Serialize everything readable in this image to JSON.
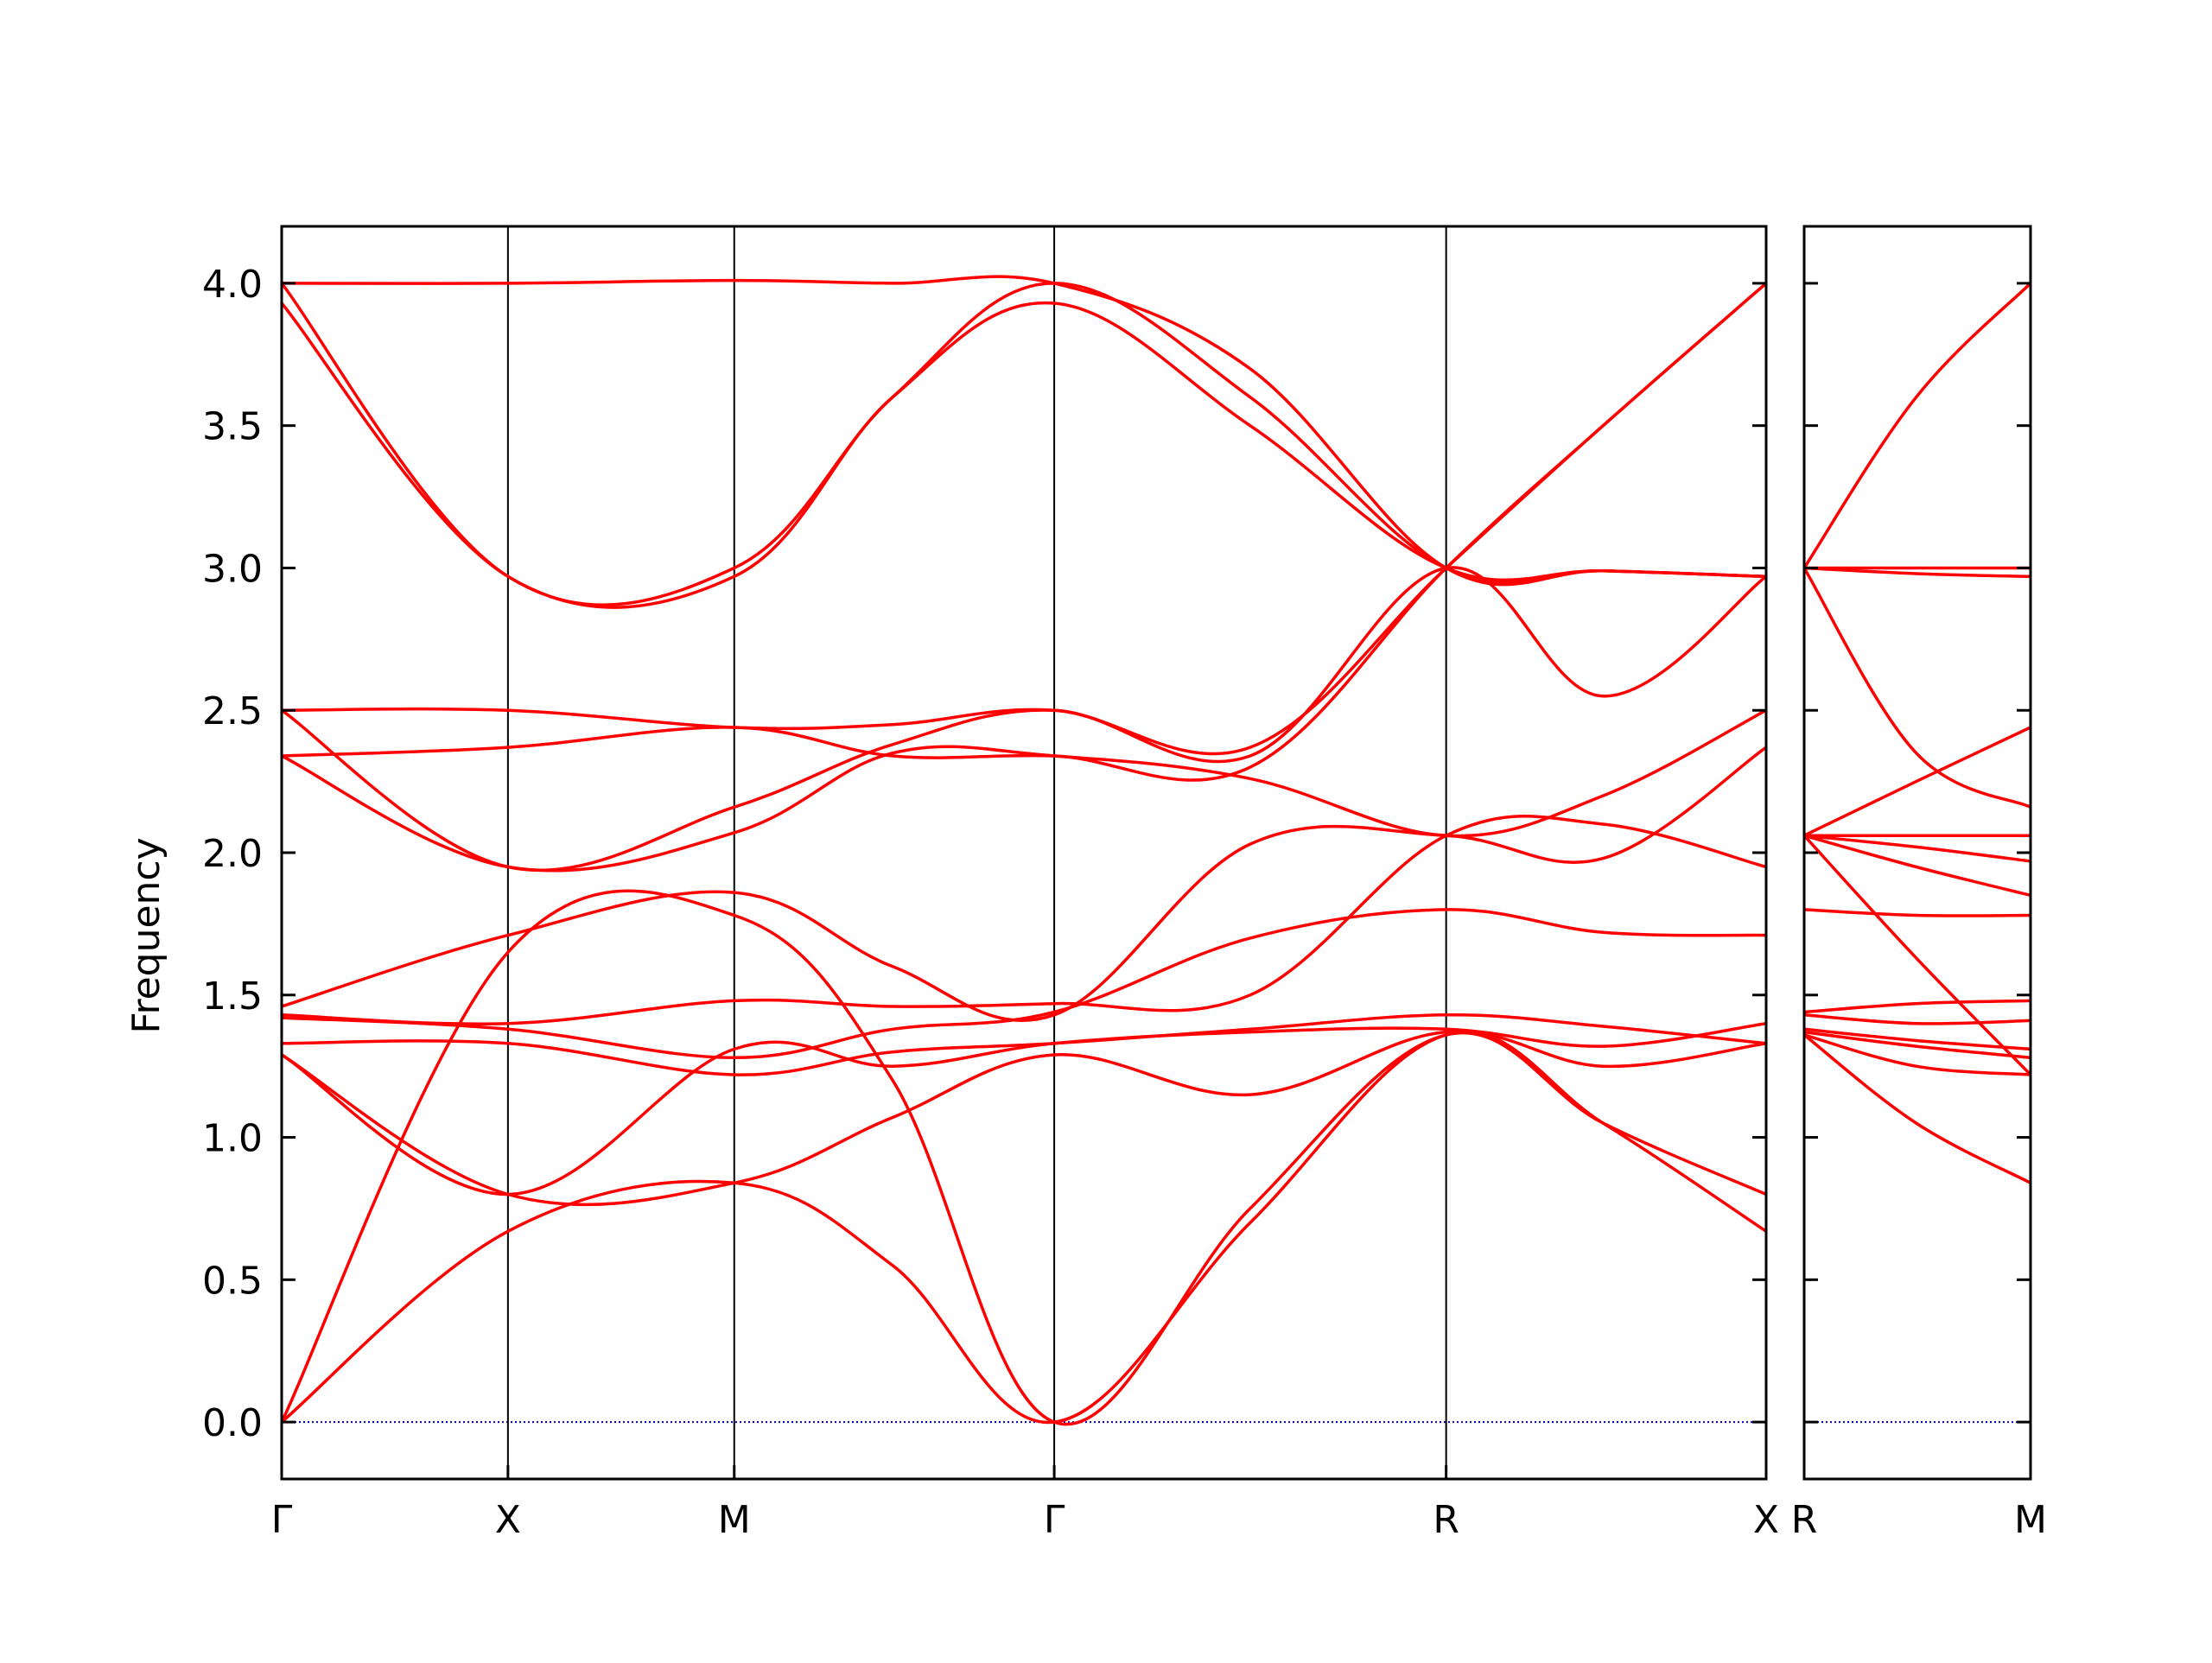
{
  "chart_data": {
    "type": "line",
    "ylabel": "Frequency",
    "ylim": [
      -0.2,
      4.2
    ],
    "yticks": [
      {
        "value": 0.0,
        "label": "0.0"
      },
      {
        "value": 0.5,
        "label": "0.5"
      },
      {
        "value": 1.0,
        "label": "1.0"
      },
      {
        "value": 1.5,
        "label": "1.5"
      },
      {
        "value": 2.0,
        "label": "2.0"
      },
      {
        "value": 2.5,
        "label": "2.5"
      },
      {
        "value": 3.0,
        "label": "3.0"
      },
      {
        "value": 3.5,
        "label": "3.5"
      },
      {
        "value": 4.0,
        "label": "4.0"
      }
    ],
    "line_color": "#ff0000",
    "zero_line_color": "#0000cc",
    "panels": [
      {
        "high_symmetry_points": [
          {
            "label": "Γ",
            "x": 0.0
          },
          {
            "label": "X",
            "x": 0.5
          },
          {
            "label": "M",
            "x": 1.0
          },
          {
            "label": "Γ",
            "x": 1.7071
          },
          {
            "label": "R",
            "x": 2.5731
          },
          {
            "label": "X",
            "x": 3.2802
          }
        ],
        "xlim": [
          0.0,
          3.2802
        ],
        "bands": [
          {
            "x": [
              0,
              0.5,
              1.0,
              1.35,
              1.7071,
              2.14,
              2.5731,
              2.92,
              3.2802
            ],
            "y": [
              0.0,
              0.67,
              0.84,
              0.55,
              0.0,
              0.7,
              1.36,
              1.05,
              0.67
            ]
          },
          {
            "x": [
              0,
              0.5,
              1.0,
              1.35,
              1.7071,
              2.14,
              2.5731,
              2.92,
              3.2802
            ],
            "y": [
              0.0,
              1.65,
              1.78,
              1.2,
              0.0,
              0.75,
              1.36,
              1.05,
              0.8
            ]
          },
          {
            "x": [
              0,
              0.5,
              1.0,
              1.35,
              1.7071,
              2.14,
              2.5731,
              2.92,
              3.2802
            ],
            "y": [
              1.29,
              0.8,
              0.84,
              1.07,
              1.29,
              1.15,
              1.37,
              1.25,
              1.33
            ]
          },
          {
            "x": [
              0,
              0.5,
              1.0,
              1.35,
              1.7071,
              2.14,
              2.5731,
              2.92,
              3.2802
            ],
            "y": [
              1.29,
              0.8,
              1.31,
              1.25,
              1.33,
              1.37,
              1.38,
              1.32,
              1.4
            ]
          },
          {
            "x": [
              0,
              0.5,
              1.0,
              1.35,
              1.7071,
              2.14,
              2.5731,
              2.92,
              3.2802
            ],
            "y": [
              1.33,
              1.33,
              1.22,
              1.3,
              1.33,
              1.38,
              1.43,
              1.39,
              1.33
            ]
          },
          {
            "x": [
              0,
              0.5,
              1.0,
              1.35,
              1.7071,
              2.14,
              2.5731,
              2.92,
              3.2802
            ],
            "y": [
              1.42,
              1.38,
              1.28,
              1.38,
              1.44,
              1.7,
              1.8,
              1.72,
              1.71
            ]
          },
          {
            "x": [
              0,
              0.5,
              1.0,
              1.35,
              1.7071,
              2.14,
              2.5731,
              2.92,
              3.2802
            ],
            "y": [
              1.43,
              1.4,
              1.48,
              1.46,
              1.47,
              1.5,
              2.06,
              2.1,
              1.95
            ]
          },
          {
            "x": [
              0,
              0.5,
              1.0,
              1.35,
              1.7071,
              2.14,
              2.5731,
              2.92,
              3.2802
            ],
            "y": [
              1.46,
              1.71,
              1.86,
              1.6,
              1.43,
              2.03,
              2.06,
              1.98,
              2.37
            ]
          },
          {
            "x": [
              0,
              0.5,
              1.0,
              1.35,
              1.7071,
              2.14,
              2.5731,
              2.92,
              3.2802
            ],
            "y": [
              2.34,
              1.95,
              2.07,
              2.35,
              2.34,
              2.26,
              2.06,
              2.2,
              2.5
            ]
          },
          {
            "x": [
              0,
              0.5,
              1.0,
              1.35,
              1.7071,
              2.14,
              2.5731,
              2.92,
              3.2802
            ],
            "y": [
              2.5,
              1.95,
              2.16,
              2.38,
              2.5,
              2.34,
              3.0,
              2.55,
              2.97
            ]
          },
          {
            "x": [
              0,
              0.5,
              1.0,
              1.35,
              1.7071,
              2.14,
              2.5731,
              2.92,
              3.2802
            ],
            "y": [
              2.34,
              2.37,
              2.44,
              2.34,
              2.34,
              2.3,
              3.0,
              3.5,
              4.0
            ]
          },
          {
            "x": [
              0,
              0.5,
              1.0,
              1.35,
              1.7071,
              2.14,
              2.5731,
              2.92,
              3.2802
            ],
            "y": [
              2.5,
              2.5,
              2.44,
              2.45,
              2.5,
              2.37,
              3.0,
              3.5,
              4.0
            ]
          },
          {
            "x": [
              0,
              0.5,
              1.0,
              1.35,
              1.7071,
              2.14,
              2.5731,
              2.92,
              3.2802
            ],
            "y": [
              3.93,
              2.97,
              2.97,
              3.6,
              3.93,
              3.5,
              3.0,
              2.99,
              2.97
            ]
          },
          {
            "x": [
              0,
              0.5,
              1.0,
              1.35,
              1.7071,
              2.14,
              2.5731,
              2.92,
              3.2802
            ],
            "y": [
              4.0,
              2.97,
              3.0,
              3.6,
              4.0,
              3.6,
              3.0,
              2.99,
              2.97
            ]
          },
          {
            "x": [
              0,
              0.5,
              1.0,
              1.35,
              1.7071,
              2.14,
              2.5731,
              2.92,
              3.2802
            ],
            "y": [
              4.0,
              4.0,
              4.01,
              4.0,
              4.0,
              3.7,
              3.0,
              2.99,
              2.97
            ]
          }
        ]
      },
      {
        "high_symmetry_points": [
          {
            "label": "R",
            "x": 0.0
          },
          {
            "label": "M",
            "x": 0.7071
          }
        ],
        "xlim": [
          0.0,
          0.7071
        ],
        "bands": [
          {
            "x": [
              0,
              0.35,
              0.7071
            ],
            "y": [
              1.36,
              1.05,
              0.84
            ]
          },
          {
            "x": [
              0,
              0.35,
              0.7071
            ],
            "y": [
              1.36,
              1.25,
              1.22
            ]
          },
          {
            "x": [
              0,
              0.35,
              0.7071
            ],
            "y": [
              1.37,
              1.32,
              1.28
            ]
          },
          {
            "x": [
              0,
              0.35,
              0.7071
            ],
            "y": [
              1.38,
              1.34,
              1.31
            ]
          },
          {
            "x": [
              0,
              0.35,
              0.7071
            ],
            "y": [
              1.43,
              1.4,
              1.41
            ]
          },
          {
            "x": [
              0,
              0.35,
              0.7071
            ],
            "y": [
              1.44,
              1.47,
              1.48
            ]
          },
          {
            "x": [
              0,
              0.35,
              0.7071
            ],
            "y": [
              1.8,
              1.78,
              1.78
            ]
          },
          {
            "x": [
              0,
              0.35,
              0.7071
            ],
            "y": [
              2.06,
              1.63,
              1.22
            ]
          },
          {
            "x": [
              0,
              0.35,
              0.7071
            ],
            "y": [
              2.06,
              1.95,
              1.85
            ]
          },
          {
            "x": [
              0,
              0.35,
              0.7071
            ],
            "y": [
              2.06,
              2.02,
              1.97
            ]
          },
          {
            "x": [
              0,
              0.35,
              0.7071
            ],
            "y": [
              2.06,
              2.06,
              2.06
            ]
          },
          {
            "x": [
              0,
              0.35,
              0.7071
            ],
            "y": [
              2.06,
              2.25,
              2.44
            ]
          },
          {
            "x": [
              0,
              0.35,
              0.7071
            ],
            "y": [
              3.0,
              2.35,
              2.16
            ]
          },
          {
            "x": [
              0,
              0.35,
              0.7071
            ],
            "y": [
              3.0,
              2.98,
              2.97
            ]
          },
          {
            "x": [
              0,
              0.35,
              0.7071
            ],
            "y": [
              3.0,
              3.0,
              3.0
            ]
          },
          {
            "x": [
              0,
              0.35,
              0.7071
            ],
            "y": [
              3.0,
              3.6,
              4.0
            ]
          }
        ]
      }
    ]
  }
}
